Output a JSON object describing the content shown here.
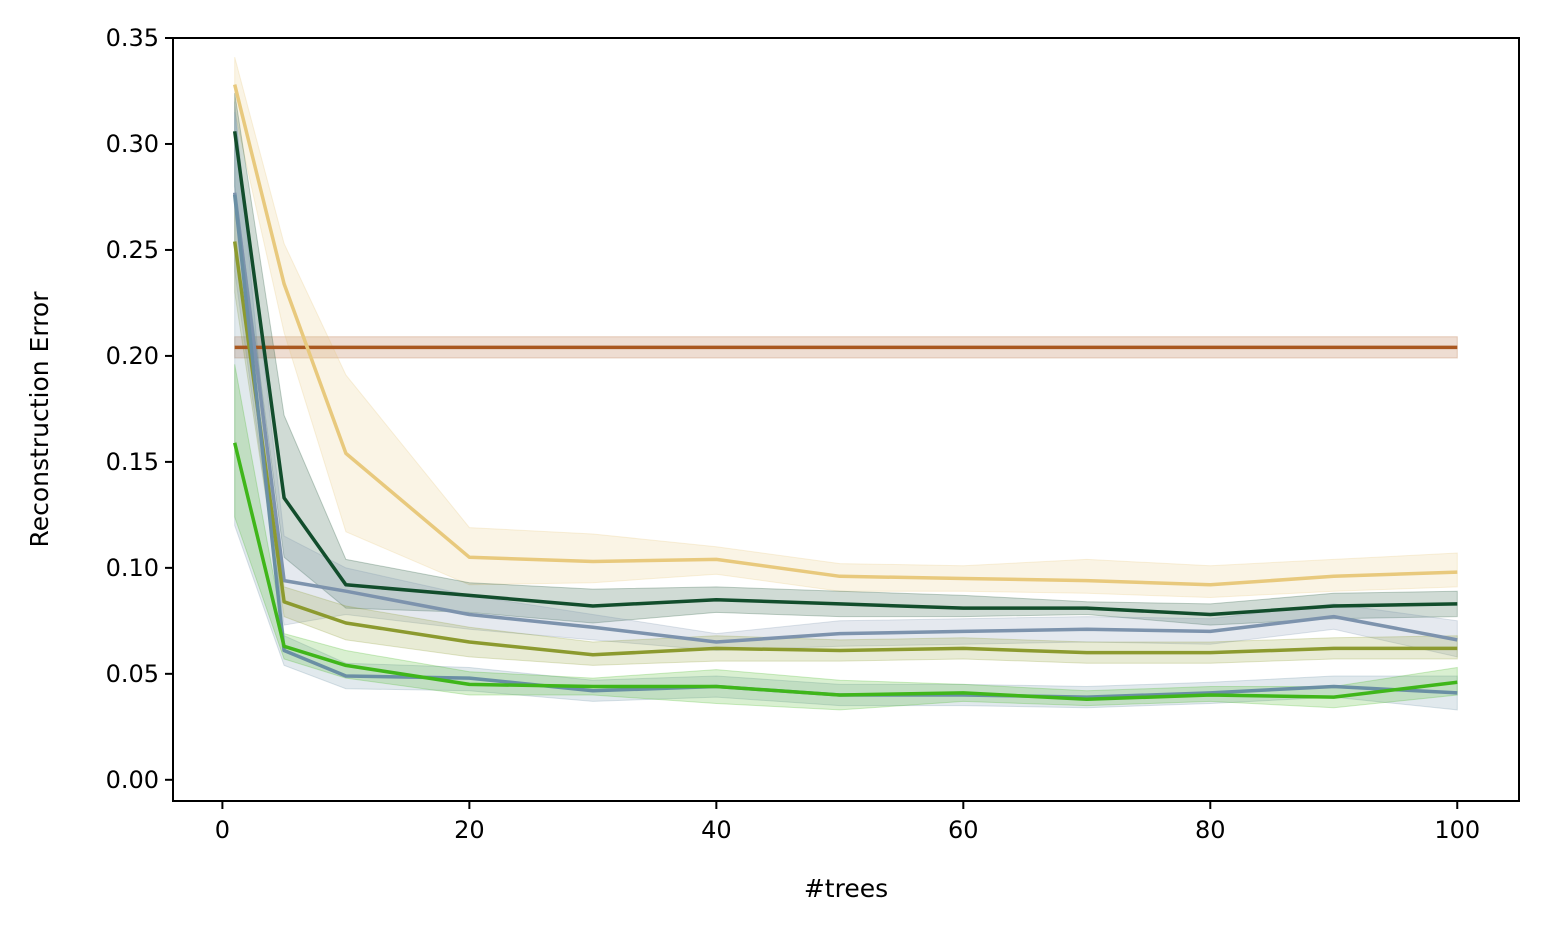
{
  "chart_data": {
    "type": "line",
    "title": "",
    "xlabel": "#trees",
    "ylabel": "Reconstruction Error",
    "xlim": [
      -4,
      105
    ],
    "ylim": [
      -0.01,
      0.35
    ],
    "xticks": [
      "0",
      "20",
      "40",
      "60",
      "80",
      "100"
    ],
    "yticks": [
      "0.00",
      "0.05",
      "0.10",
      "0.15",
      "0.20",
      "0.25",
      "0.30",
      "0.35"
    ],
    "grid": false,
    "legend": "none",
    "x": [
      1,
      5,
      10,
      20,
      30,
      40,
      50,
      60,
      70,
      80,
      90,
      100
    ],
    "series": [
      {
        "color": "#a9571f",
        "values": [
          0.204,
          0.204,
          0.204,
          0.204,
          0.204,
          0.204,
          0.204,
          0.204,
          0.204,
          0.204,
          0.204,
          0.204
        ],
        "lower": [
          0.199,
          0.199,
          0.199,
          0.199,
          0.199,
          0.199,
          0.199,
          0.199,
          0.199,
          0.199,
          0.199,
          0.199
        ],
        "upper": [
          0.209,
          0.209,
          0.209,
          0.209,
          0.209,
          0.209,
          0.209,
          0.209,
          0.209,
          0.209,
          0.209,
          0.209
        ]
      },
      {
        "color": "#e8c97d",
        "values": [
          0.328,
          0.234,
          0.154,
          0.105,
          0.103,
          0.104,
          0.096,
          0.095,
          0.094,
          0.092,
          0.096,
          0.098
        ],
        "lower": [
          0.315,
          0.211,
          0.117,
          0.092,
          0.093,
          0.097,
          0.089,
          0.089,
          0.088,
          0.086,
          0.089,
          0.091
        ],
        "upper": [
          0.341,
          0.253,
          0.191,
          0.119,
          0.116,
          0.11,
          0.102,
          0.101,
          0.104,
          0.101,
          0.104,
          0.107
        ]
      },
      {
        "color": "#124d2c",
        "values": [
          0.306,
          0.133,
          0.092,
          0.087,
          0.082,
          0.085,
          0.083,
          0.081,
          0.081,
          0.078,
          0.082,
          0.083
        ],
        "lower": [
          0.28,
          0.105,
          0.081,
          0.079,
          0.074,
          0.079,
          0.077,
          0.077,
          0.078,
          0.073,
          0.076,
          0.077
        ],
        "upper": [
          0.324,
          0.172,
          0.104,
          0.093,
          0.09,
          0.091,
          0.089,
          0.087,
          0.084,
          0.083,
          0.088,
          0.089
        ]
      },
      {
        "color": "#7d93ad",
        "values": [
          0.277,
          0.094,
          0.089,
          0.078,
          0.072,
          0.065,
          0.069,
          0.07,
          0.071,
          0.07,
          0.077,
          0.066
        ],
        "lower": [
          0.24,
          0.073,
          0.078,
          0.071,
          0.066,
          0.061,
          0.063,
          0.064,
          0.065,
          0.064,
          0.071,
          0.058
        ],
        "upper": [
          0.315,
          0.115,
          0.1,
          0.087,
          0.078,
          0.069,
          0.075,
          0.076,
          0.077,
          0.076,
          0.083,
          0.075
        ]
      },
      {
        "color": "#8c9a2f",
        "values": [
          0.254,
          0.084,
          0.074,
          0.065,
          0.059,
          0.062,
          0.061,
          0.062,
          0.06,
          0.06,
          0.062,
          0.062
        ],
        "lower": [
          0.23,
          0.077,
          0.066,
          0.058,
          0.054,
          0.056,
          0.056,
          0.057,
          0.055,
          0.055,
          0.057,
          0.057
        ],
        "upper": [
          0.271,
          0.091,
          0.082,
          0.072,
          0.065,
          0.068,
          0.066,
          0.067,
          0.065,
          0.065,
          0.067,
          0.068
        ]
      },
      {
        "color": "#6a8fa4",
        "values": [
          0.276,
          0.061,
          0.049,
          0.048,
          0.042,
          0.044,
          0.04,
          0.04,
          0.039,
          0.041,
          0.044,
          0.041
        ],
        "lower": [
          0.12,
          0.054,
          0.043,
          0.042,
          0.037,
          0.039,
          0.035,
          0.035,
          0.034,
          0.036,
          0.039,
          0.033
        ],
        "upper": [
          0.32,
          0.068,
          0.055,
          0.053,
          0.047,
          0.049,
          0.045,
          0.045,
          0.044,
          0.046,
          0.049,
          0.049
        ]
      },
      {
        "color": "#3fb61a",
        "values": [
          0.159,
          0.063,
          0.054,
          0.045,
          0.044,
          0.044,
          0.04,
          0.041,
          0.038,
          0.04,
          0.039,
          0.046
        ],
        "lower": [
          0.124,
          0.057,
          0.048,
          0.04,
          0.04,
          0.036,
          0.033,
          0.037,
          0.035,
          0.037,
          0.034,
          0.04
        ],
        "upper": [
          0.196,
          0.069,
          0.061,
          0.051,
          0.048,
          0.052,
          0.047,
          0.045,
          0.042,
          0.044,
          0.044,
          0.053
        ]
      }
    ]
  }
}
